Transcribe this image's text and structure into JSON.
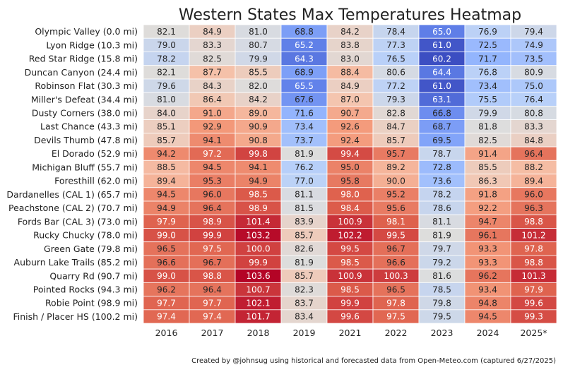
{
  "chart_data": {
    "type": "heatmap",
    "title": "Western States Max Temperatures Heatmap",
    "xlabel": "",
    "ylabel": "",
    "colormap": "coolwarm",
    "vmin": 60,
    "vmax": 103.6,
    "colorbar": false,
    "columns": [
      "2016",
      "2017",
      "2018",
      "2019",
      "2021",
      "2022",
      "2023",
      "2024",
      "2025*"
    ],
    "rows": [
      "Olympic Valley (0.0 mi)",
      "Lyon Ridge (10.3 mi)",
      "Red Star Ridge (15.8 mi)",
      "Duncan Canyon (24.4 mi)",
      "Robinson Flat (30.3 mi)",
      "Miller's Defeat (34.4 mi)",
      "Dusty Corners (38.0 mi)",
      "Last Chance (43.3 mi)",
      "Devils Thumb (47.8 mi)",
      "El Dorado (52.9 mi)",
      "Michigan Bluff (55.7 mi)",
      "Foresthill (62.0 mi)",
      "Dardanelles (CAL 1) (65.7 mi)",
      "Peachstone (CAL 2) (70.7 mi)",
      "Fords Bar (CAL 3) (73.0 mi)",
      "Rucky Chucky (78.0 mi)",
      "Green Gate (79.8 mi)",
      "Auburn Lake Trails (85.2 mi)",
      "Quarry Rd (90.7 mi)",
      "Pointed Rocks (94.3 mi)",
      "Robie Point (98.9 mi)",
      "Finish / Placer HS (100.2 mi)"
    ],
    "values": [
      [
        82.1,
        84.9,
        81.0,
        68.8,
        84.2,
        78.4,
        65.0,
        76.9,
        79.4
      ],
      [
        79.0,
        83.3,
        80.7,
        65.2,
        83.8,
        77.3,
        61.0,
        72.5,
        74.9
      ],
      [
        78.2,
        82.5,
        79.9,
        64.3,
        83.0,
        76.5,
        60.2,
        71.7,
        73.5
      ],
      [
        82.1,
        87.7,
        85.5,
        68.9,
        88.4,
        80.6,
        64.4,
        76.8,
        80.9
      ],
      [
        79.6,
        84.3,
        82.0,
        65.5,
        84.9,
        77.2,
        61.0,
        73.4,
        75.0
      ],
      [
        81.0,
        86.4,
        84.2,
        67.6,
        87.0,
        79.3,
        63.1,
        75.5,
        76.4
      ],
      [
        84.0,
        91.0,
        89.0,
        71.6,
        90.7,
        82.8,
        66.8,
        79.9,
        80.8
      ],
      [
        85.1,
        92.9,
        90.9,
        73.4,
        92.6,
        84.7,
        68.7,
        81.8,
        83.3
      ],
      [
        85.7,
        94.1,
        90.8,
        73.7,
        92.4,
        85.7,
        69.5,
        82.5,
        84.8
      ],
      [
        94.2,
        97.2,
        99.8,
        81.9,
        99.4,
        95.7,
        78.7,
        91.4,
        96.4
      ],
      [
        88.5,
        94.5,
        94.1,
        76.2,
        95.0,
        89.2,
        72.8,
        85.5,
        88.2
      ],
      [
        89.4,
        95.3,
        94.9,
        77.0,
        95.8,
        90.0,
        73.6,
        86.3,
        89.4
      ],
      [
        94.5,
        96.0,
        98.5,
        81.1,
        98.0,
        95.2,
        78.2,
        91.8,
        96.0
      ],
      [
        94.9,
        96.4,
        98.9,
        81.5,
        98.4,
        95.6,
        78.6,
        92.2,
        96.3
      ],
      [
        97.9,
        98.9,
        101.4,
        83.9,
        100.9,
        98.1,
        81.1,
        94.7,
        98.8
      ],
      [
        99.0,
        99.9,
        103.2,
        85.7,
        102.2,
        99.5,
        81.9,
        96.1,
        101.2
      ],
      [
        96.5,
        97.5,
        100.0,
        82.6,
        99.5,
        96.7,
        79.7,
        93.3,
        97.8
      ],
      [
        96.6,
        96.7,
        99.9,
        81.9,
        98.5,
        96.6,
        79.2,
        93.3,
        98.8
      ],
      [
        99.0,
        98.8,
        103.6,
        85.7,
        100.9,
        100.3,
        81.6,
        96.2,
        101.3
      ],
      [
        96.2,
        96.4,
        100.7,
        82.3,
        98.5,
        96.5,
        78.5,
        93.4,
        97.9
      ],
      [
        97.7,
        97.7,
        102.1,
        83.7,
        99.9,
        97.8,
        79.8,
        94.8,
        99.6
      ],
      [
        97.4,
        97.4,
        101.7,
        83.4,
        99.6,
        97.5,
        79.5,
        94.5,
        99.3
      ]
    ],
    "credit": "Created by @johnsug using historical and forecasted data from Open-Meteo.com (captured 6/27/2025)"
  }
}
